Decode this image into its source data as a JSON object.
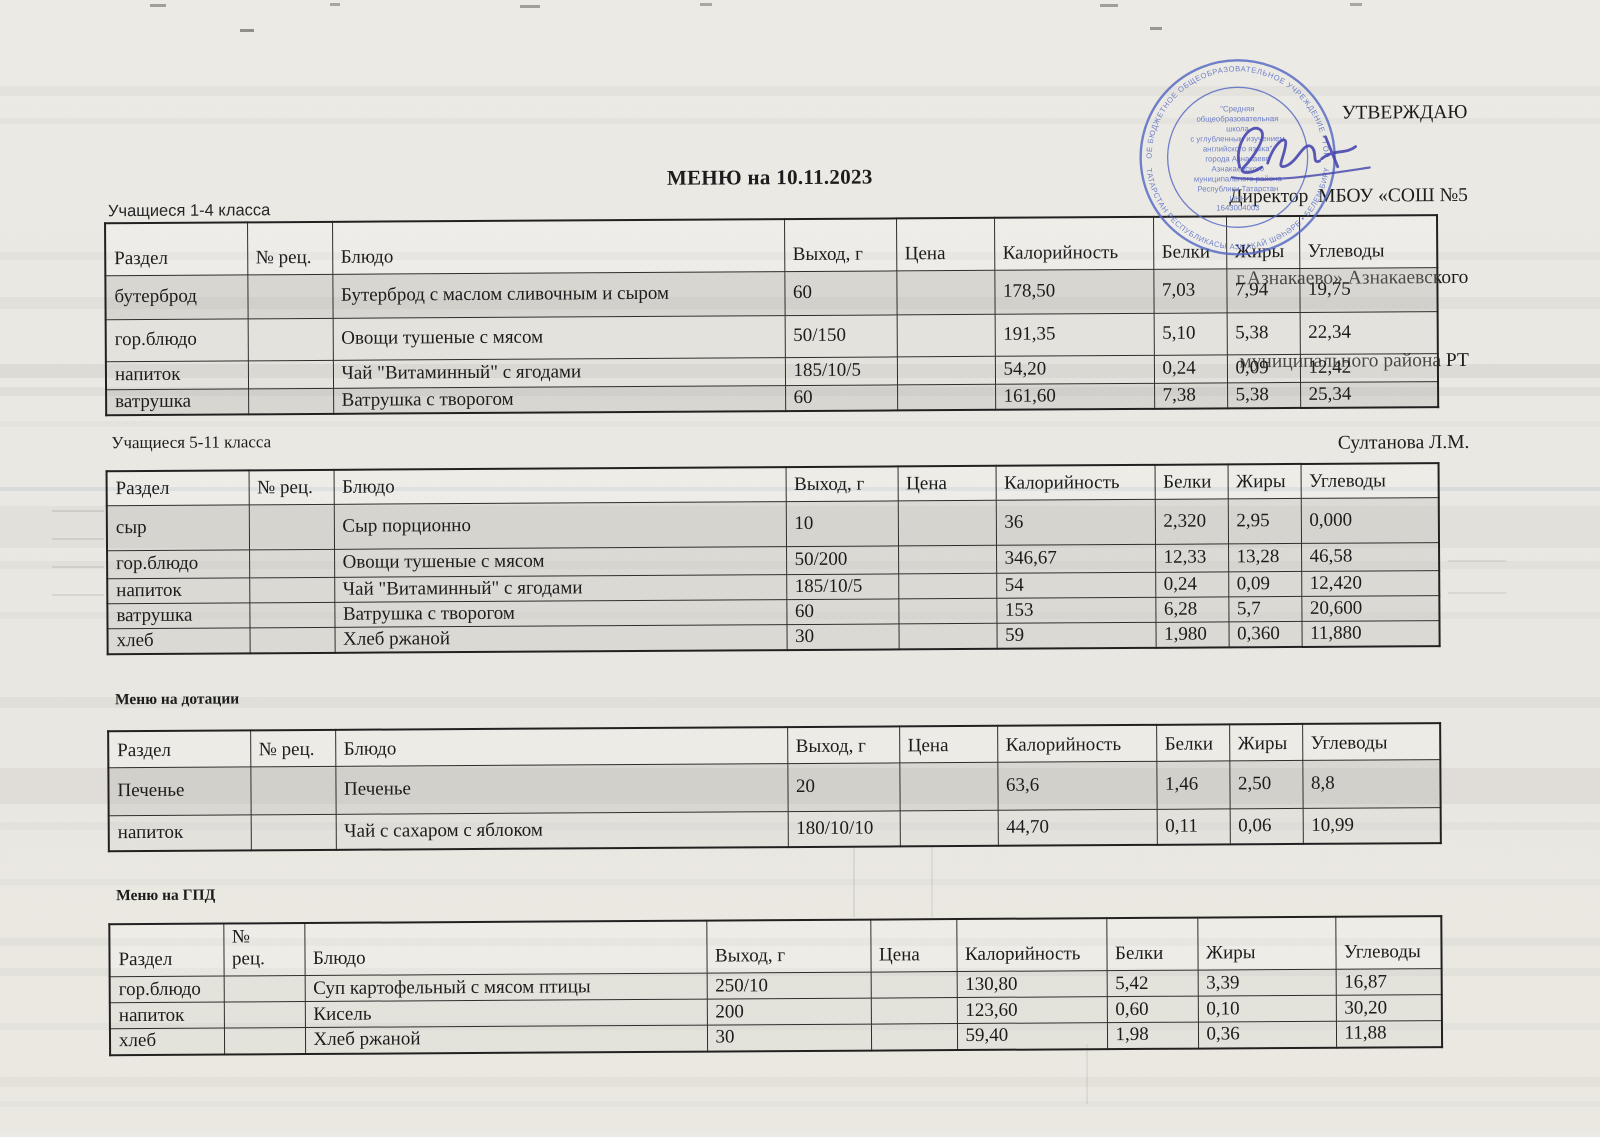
{
  "title": "МЕНЮ на 10.11.2023",
  "approval": {
    "lines": [
      "УТВЕРЖДАЮ",
      "Директор  МБОУ «СОШ №5",
      "г.Азнакаево» Азнакаевского",
      "муниципального района РТ",
      "Султанова Л.М."
    ]
  },
  "stamp": {
    "color": "#5468c4",
    "ring_text_top": "МУНИЦИПАЛЬНОЕ БЮДЖЕТНОЕ ОБЩЕОБРАЗОВАТЕЛЬНОЕ УЧРЕЖДЕНИЕ • ГОРОД АЗНАКАЕВО",
    "ring_text_bottom": "ТАТАРСТАН РЕСПУБЛИКАСЫ АЗНАКАЙ ШӘҺӘРЕ • БЕЛЕМ БИРҮ",
    "center_lines": [
      "\"Средняя",
      "общеобразовательная",
      "школа",
      "с углубленным изучением",
      "английского языка\"",
      "города Азнакаево",
      "Азнакаевского",
      "муниципального района",
      "Республики Татарстан",
      "ИНН",
      "1643004003"
    ]
  },
  "tables": [
    {
      "section": "Учащиеся 1-4 класса",
      "headers": [
        "Раздел",
        "№ рец.",
        "Блюдо",
        "Выход, г",
        "Цена",
        "Калорийность",
        "Белки",
        "Жиры",
        "Углеводы"
      ],
      "rows": [
        [
          "бутерброд",
          "",
          "Бутерброд с маслом сливочным и сыром",
          "60",
          "",
          "178,50",
          "7,03",
          "7,94",
          "19,75"
        ],
        [
          "гор.блюдо",
          "",
          "Овощи тушеные с мясом",
          "50/150",
          "",
          "191,35",
          "5,10",
          "5,38",
          "22,34"
        ],
        [
          "напиток",
          "",
          "Чай \"Витаминный\" с ягодами",
          "185/10/5",
          "",
          "54,20",
          "0,24",
          "0,09",
          "12,42"
        ],
        [
          "ватрушка",
          "",
          "Ватрушка с творогом",
          "60",
          "",
          "161,60",
          "7,38",
          "5,38",
          "25,34"
        ]
      ]
    },
    {
      "section": "Учащиеся 5-11 класса",
      "headers": [
        "Раздел",
        "№ рец.",
        "Блюдо",
        "Выход, г",
        "Цена",
        "Калорийность",
        "Белки",
        "Жиры",
        "Углеводы"
      ],
      "rows": [
        [
          "сыр",
          "",
          "Сыр порционно",
          "10",
          "",
          "36",
          "2,320",
          "2,95",
          "0,000"
        ],
        [
          "гор.блюдо",
          "",
          "Овощи тушеные с мясом",
          "50/200",
          "",
          "346,67",
          "12,33",
          "13,28",
          "46,58"
        ],
        [
          "напиток",
          "",
          "Чай \"Витаминный\" с ягодами",
          "185/10/5",
          "",
          "54",
          "0,24",
          "0,09",
          "12,420"
        ],
        [
          "ватрушка",
          "",
          "Ватрушка с творогом",
          "60",
          "",
          "153",
          "6,28",
          "5,7",
          "20,600"
        ],
        [
          "хлеб",
          "",
          "Хлеб ржаной",
          "30",
          "",
          "59",
          "1,980",
          "0,360",
          "11,880"
        ]
      ]
    },
    {
      "section": "Меню на дотации",
      "headers": [
        "Раздел",
        "№ рец.",
        "Блюдо",
        "Выход, г",
        "Цена",
        "Калорийность",
        "Белки",
        "Жиры",
        "Углеводы"
      ],
      "rows": [
        [
          "Печенье",
          "",
          "Печенье",
          "20",
          "",
          "63,6",
          "1,46",
          "2,50",
          "8,8"
        ],
        [
          "напиток",
          "",
          "Чай с сахаром с яблоком",
          "180/10/10",
          "",
          "44,70",
          "0,11",
          "0,06",
          "10,99"
        ]
      ]
    },
    {
      "section": "Меню на ГПД",
      "headers": [
        "Раздел",
        "№\nрец.",
        "Блюдо",
        "Выход, г",
        "Цена",
        "Калорийность",
        "Белки",
        "Жиры",
        "Углеводы"
      ],
      "rows": [
        [
          "гор.блюдо",
          "",
          "Суп картофельный с мясом птицы",
          "250/10",
          "",
          "130,80",
          "5,42",
          "3,39",
          "16,87"
        ],
        [
          "напиток",
          "",
          "Кисель",
          "200",
          "",
          "123,60",
          "0,60",
          "0,10",
          "30,20"
        ],
        [
          "хлеб",
          "",
          "Хлеб ржаной",
          "30",
          "",
          "59,40",
          "1,98",
          "0,36",
          "11,88"
        ]
      ]
    }
  ]
}
